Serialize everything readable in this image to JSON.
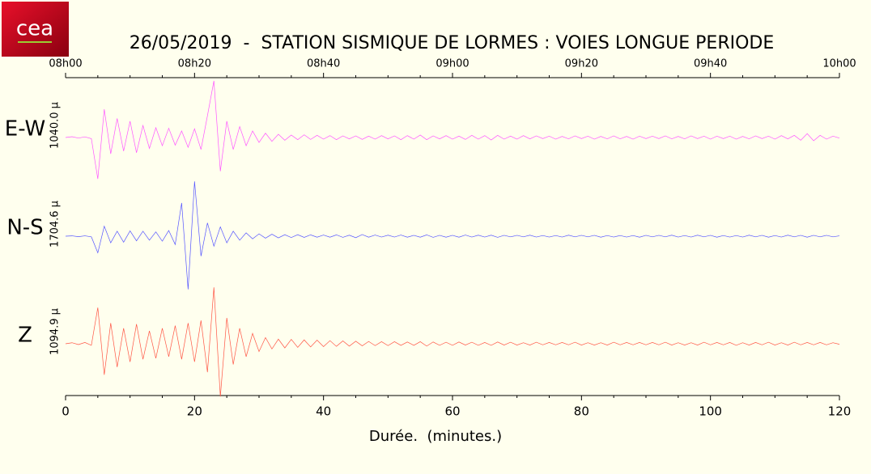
{
  "logo": {
    "text": "cea"
  },
  "chart_data": {
    "type": "line",
    "title": "26/05/2019  -  STATION SISMIQUE DE LORMES : VOIES LONGUE PERIODE",
    "xlabel": "Durée.  (minutes.)",
    "xlim": [
      0,
      120
    ],
    "xticks": [
      0,
      20,
      40,
      60,
      80,
      100,
      120
    ],
    "xminorticks": [
      5,
      10,
      15,
      25,
      30,
      35,
      45,
      50,
      55,
      65,
      70,
      75,
      85,
      90,
      95,
      105,
      110,
      115
    ],
    "x2ticks": [
      {
        "value": 0,
        "label": "08h00"
      },
      {
        "value": 20,
        "label": "08h20"
      },
      {
        "value": 40,
        "label": "08h40"
      },
      {
        "value": 60,
        "label": "09h00"
      },
      {
        "value": 80,
        "label": "09h20"
      },
      {
        "value": 100,
        "label": "09h40"
      },
      {
        "value": 120,
        "label": "10h00"
      }
    ],
    "x": [
      0,
      1,
      2,
      3,
      4,
      5,
      6,
      7,
      8,
      9,
      10,
      11,
      12,
      13,
      14,
      15,
      16,
      17,
      18,
      19,
      20,
      21,
      22,
      23,
      24,
      25,
      26,
      27,
      28,
      29,
      30,
      31,
      32,
      33,
      34,
      35,
      36,
      37,
      38,
      39,
      40,
      41,
      42,
      43,
      44,
      45,
      46,
      47,
      48,
      49,
      50,
      51,
      52,
      53,
      54,
      55,
      56,
      57,
      58,
      59,
      60,
      61,
      62,
      63,
      64,
      65,
      66,
      67,
      68,
      69,
      70,
      71,
      72,
      73,
      74,
      75,
      76,
      77,
      78,
      79,
      80,
      81,
      82,
      83,
      84,
      85,
      86,
      87,
      88,
      89,
      90,
      91,
      92,
      93,
      94,
      95,
      96,
      97,
      98,
      99,
      100,
      101,
      102,
      103,
      104,
      105,
      106,
      107,
      108,
      109,
      110,
      111,
      112,
      113,
      114,
      115,
      116,
      117,
      118,
      119,
      120
    ],
    "series": [
      {
        "name": "E-W",
        "color": "#ff55ff",
        "amplitude": 1040.0,
        "amplitude_label": "1040.0 µ",
        "values": [
          0,
          15,
          -10,
          12,
          -20,
          -760,
          520,
          -300,
          350,
          -250,
          300,
          -280,
          220,
          -200,
          180,
          -150,
          170,
          -140,
          120,
          -180,
          160,
          -220,
          400,
          1040,
          -620,
          300,
          -220,
          200,
          -150,
          120,
          -90,
          80,
          -70,
          60,
          -50,
          45,
          -40,
          50,
          -35,
          40,
          -30,
          35,
          -40,
          30,
          -25,
          30,
          -35,
          25,
          -30,
          35,
          -25,
          30,
          -40,
          35,
          -30,
          45,
          -40,
          30,
          -25,
          35,
          -30,
          25,
          -35,
          40,
          -30,
          35,
          -45,
          40,
          -30,
          25,
          -30,
          35,
          -25,
          30,
          -20,
          25,
          -30,
          20,
          -25,
          30,
          -20,
          25,
          -30,
          20,
          -25,
          30,
          -25,
          20,
          -30,
          25,
          -20,
          25,
          -20,
          30,
          -25,
          20,
          -25,
          30,
          -20,
          25,
          -30,
          25,
          -20,
          25,
          -30,
          20,
          -25,
          30,
          -20,
          25,
          -30,
          35,
          -25,
          40,
          -50,
          70,
          -60,
          40,
          -30,
          25,
          -10
        ]
      },
      {
        "name": "N-S",
        "color": "#5555ff",
        "amplitude": 1704.6,
        "amplitude_label": "1704.6 µ",
        "values": [
          0,
          10,
          -15,
          10,
          -20,
          -500,
          300,
          -200,
          150,
          -180,
          160,
          -140,
          150,
          -120,
          130,
          -150,
          170,
          -250,
          1000,
          -1600,
          1650,
          -600,
          400,
          -300,
          280,
          -200,
          150,
          -120,
          100,
          -80,
          70,
          -60,
          60,
          -50,
          45,
          -40,
          45,
          -35,
          40,
          -30,
          35,
          -30,
          40,
          -35,
          30,
          -45,
          50,
          -30,
          35,
          -25,
          30,
          -25,
          35,
          -30,
          25,
          -30,
          40,
          -35,
          25,
          -30,
          25,
          -30,
          35,
          -25,
          30,
          -25,
          30,
          -35,
          25,
          -20,
          25,
          -20,
          30,
          -25,
          20,
          -25,
          20,
          -25,
          30,
          -20,
          25,
          -20,
          25,
          -30,
          20,
          -25,
          20,
          -25,
          20,
          -30,
          25,
          -20,
          25,
          -20,
          30,
          -25,
          20,
          -25,
          30,
          -20,
          25,
          -30,
          20,
          -25,
          20,
          -25,
          30,
          -20,
          25,
          -30,
          20,
          -25,
          30,
          -20,
          25,
          -30,
          25,
          -20,
          25,
          -20,
          10
        ]
      },
      {
        "name": "Z",
        "color": "#ff5544",
        "amplitude": 1094.9,
        "amplitude_label": "1094.9 µ",
        "values": [
          0,
          20,
          -15,
          25,
          -30,
          700,
          -600,
          400,
          -450,
          300,
          -350,
          380,
          -300,
          250,
          -280,
          300,
          -250,
          350,
          -300,
          400,
          -350,
          450,
          -550,
          1090,
          -1020,
          500,
          -400,
          300,
          -250,
          200,
          -150,
          120,
          -100,
          90,
          -80,
          85,
          -70,
          75,
          -60,
          70,
          -55,
          60,
          -50,
          55,
          -45,
          50,
          -40,
          45,
          -35,
          40,
          -35,
          40,
          -30,
          35,
          -30,
          40,
          -45,
          35,
          -30,
          30,
          -30,
          35,
          -25,
          30,
          -30,
          25,
          -30,
          35,
          -25,
          30,
          -25,
          20,
          -25,
          30,
          -20,
          25,
          -20,
          25,
          -20,
          30,
          -25,
          20,
          -25,
          20,
          -25,
          30,
          -20,
          25,
          -20,
          25,
          -20,
          25,
          -20,
          30,
          -25,
          20,
          -25,
          20,
          -25,
          30,
          -20,
          25,
          -20,
          25,
          -30,
          20,
          -25,
          25,
          -20,
          30,
          -25,
          20,
          -25,
          30,
          -20,
          25,
          -20,
          25,
          -20,
          20,
          -10
        ]
      }
    ]
  }
}
